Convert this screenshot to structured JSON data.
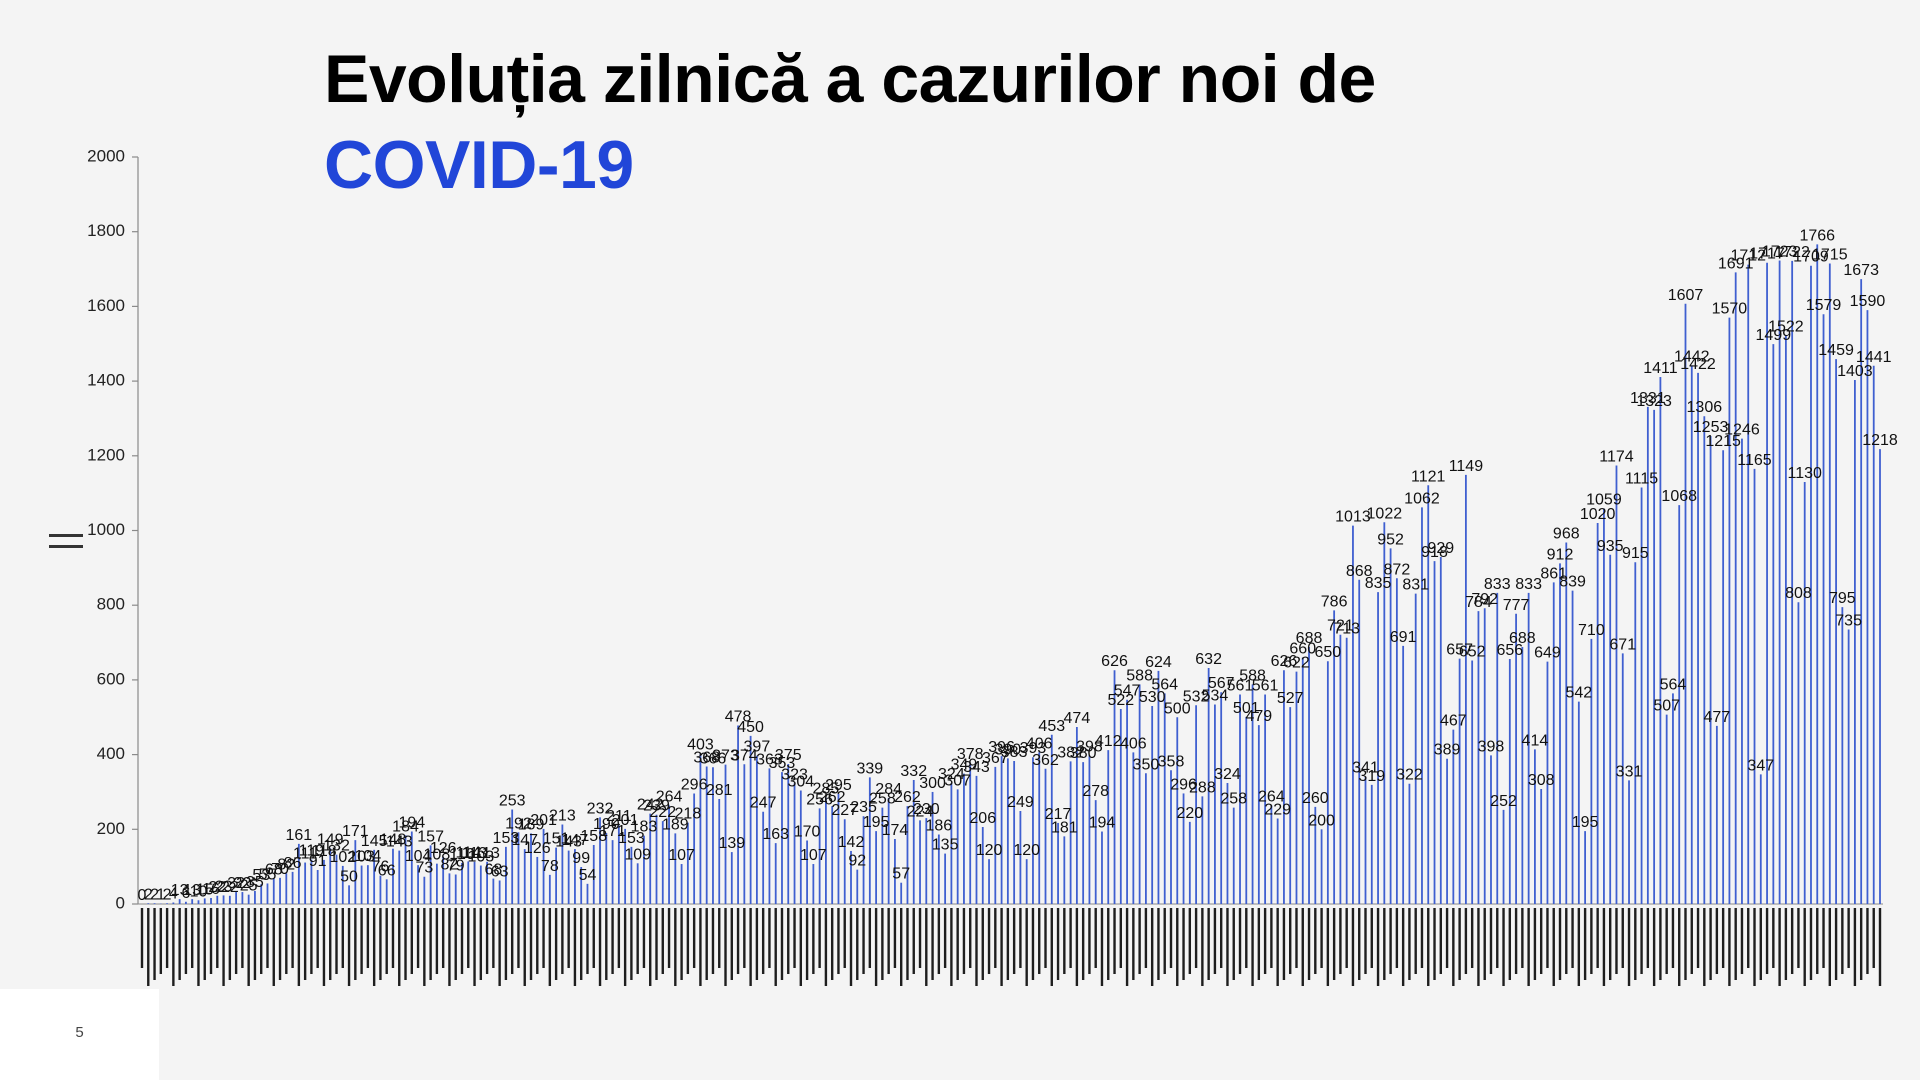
{
  "slide": {
    "page_number": "5",
    "title_color": "#000000",
    "accent_color": "#2146d8",
    "background_color": "#f4f4f4"
  },
  "decorations": {
    "axis_break_icon": "equals-sign-icon"
  },
  "chart_data": {
    "type": "bar",
    "title": [
      "Evoluția zilnică a cazurilor noi de",
      "COVID-19"
    ],
    "xlabel": "",
    "ylabel": "",
    "ylim": [
      0,
      2000
    ],
    "yticks": [
      0,
      200,
      400,
      600,
      800,
      1000,
      1200,
      1400,
      1600,
      1800,
      2000
    ],
    "grid": false,
    "legend": "none",
    "data_labels": true,
    "bar_color": "#3f5fd0",
    "values": [
      0,
      2,
      2,
      1,
      2,
      4,
      13,
      6,
      13,
      10,
      15,
      16,
      22,
      23,
      22,
      32,
      32,
      25,
      35,
      53,
      55,
      68,
      70,
      82,
      86,
      161,
      111,
      119,
      91,
      118,
      149,
      132,
      102,
      50,
      171,
      103,
      104,
      145,
      76,
      66,
      148,
      143,
      184,
      194,
      104,
      73,
      157,
      108,
      126,
      82,
      79,
      110,
      114,
      113,
      103,
      113,
      68,
      63,
      153,
      253,
      192,
      147,
      189,
      126,
      201,
      78,
      151,
      213,
      143,
      147,
      99,
      54,
      158,
      232,
      190,
      171,
      211,
      201,
      153,
      109,
      183,
      242,
      239,
      222,
      264,
      189,
      107,
      218,
      296,
      403,
      368,
      366,
      281,
      373,
      139,
      478,
      374,
      450,
      397,
      247,
      363,
      163,
      353,
      375,
      323,
      304,
      170,
      107,
      256,
      285,
      262,
      295,
      227,
      142,
      92,
      235,
      339,
      195,
      258,
      284,
      174,
      57,
      262,
      332,
      224,
      230,
      300,
      186,
      135,
      324,
      307,
      349,
      378,
      343,
      206,
      120,
      367,
      396,
      390,
      383,
      249,
      120,
      393,
      406,
      362,
      453,
      217,
      181,
      382,
      474,
      380,
      398,
      278,
      194,
      412,
      626,
      522,
      547,
      406,
      588,
      350,
      530,
      624,
      564,
      358,
      500,
      296,
      220,
      532,
      288,
      632,
      534,
      567,
      324,
      258,
      561,
      501,
      588,
      479,
      561,
      264,
      229,
      626,
      527,
      622,
      660,
      688,
      260,
      200,
      650,
      786,
      721,
      713,
      1013,
      868,
      341,
      319,
      835,
      1022,
      952,
      872,
      691,
      322,
      831,
      1062,
      1121,
      918,
      929,
      389,
      467,
      657,
      1149,
      652,
      784,
      792,
      398,
      833,
      252,
      656,
      777,
      688,
      833,
      414,
      308,
      649,
      861,
      912,
      968,
      839,
      542,
      195,
      710,
      1020,
      1059,
      935,
      1174,
      671,
      331,
      915,
      1115,
      1331,
      1323,
      1411,
      507,
      564,
      1068,
      1607,
      1442,
      1422,
      1306,
      1253,
      477,
      1215,
      1570,
      1691,
      1246,
      1712,
      1165,
      347,
      1717,
      1499,
      1723,
      1522,
      1722,
      808,
      1130,
      1709,
      1766,
      1579,
      1715,
      1459,
      795,
      735,
      1403,
      1673,
      1590,
      1441,
      1218
    ]
  }
}
